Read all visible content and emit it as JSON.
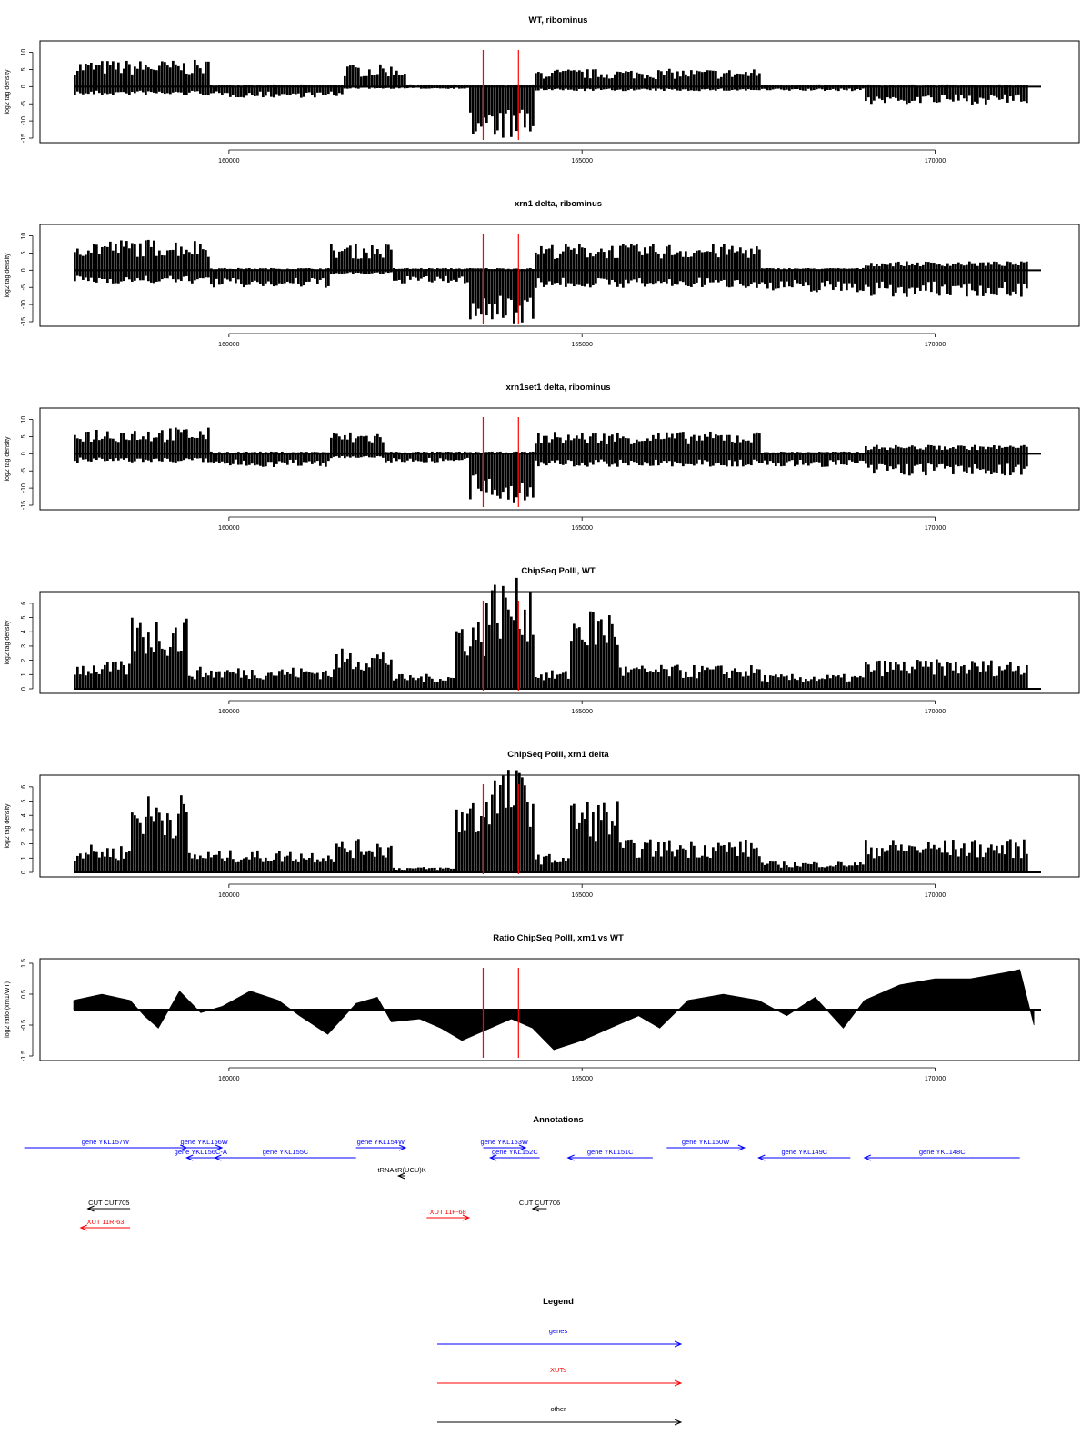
{
  "colors": {
    "genes": "#0000ff",
    "xuts": "#ff0000",
    "other": "#000000",
    "marker": "#ff0000",
    "fill": "#000000"
  },
  "chart_data": [
    {
      "type": "area",
      "title": "WT, ribominus",
      "ylabel": "log2 tag density",
      "xlim": [
        157800,
        171500
      ],
      "ylim": [
        -15,
        12
      ],
      "yticks": [
        -15,
        -10,
        -5,
        0,
        5,
        10
      ],
      "xticks": [
        160000,
        165000,
        170000
      ],
      "xtick_labels": [
        "160000",
        "165000",
        "170000"
      ],
      "markers": [
        163600,
        164100
      ],
      "segments": [
        {
          "x": [
            157800,
            159700
          ],
          "pos": 6,
          "neg": -2
        },
        {
          "x": [
            159700,
            161600
          ],
          "pos": 0.5,
          "neg": -2.5
        },
        {
          "x": [
            161600,
            162500
          ],
          "pos": 5,
          "neg": -0.5
        },
        {
          "x": [
            162500,
            163400
          ],
          "pos": 0.5,
          "neg": -0.5
        },
        {
          "x": [
            163400,
            164300
          ],
          "pos": 0.5,
          "neg": -12
        },
        {
          "x": [
            164300,
            167500
          ],
          "pos": 4,
          "neg": -1
        },
        {
          "x": [
            167500,
            169000
          ],
          "pos": 0.5,
          "neg": -1
        },
        {
          "x": [
            169000,
            171300
          ],
          "pos": 0.5,
          "neg": -4
        }
      ]
    },
    {
      "type": "area",
      "title": "xrn1 delta, ribominus",
      "ylabel": "log2 tag density",
      "xlim": [
        157800,
        171500
      ],
      "ylim": [
        -15,
        12
      ],
      "yticks": [
        -15,
        -10,
        -5,
        0,
        5,
        10
      ],
      "xticks": [
        160000,
        165000,
        170000
      ],
      "xtick_labels": [
        "160000",
        "165000",
        "170000"
      ],
      "markers": [
        163600,
        164100
      ],
      "segments": [
        {
          "x": [
            157800,
            159700
          ],
          "pos": 7,
          "neg": -3
        },
        {
          "x": [
            159700,
            161400
          ],
          "pos": 0.5,
          "neg": -4
        },
        {
          "x": [
            161400,
            162300
          ],
          "pos": 6,
          "neg": -1
        },
        {
          "x": [
            162300,
            163400
          ],
          "pos": 0.5,
          "neg": -3
        },
        {
          "x": [
            163400,
            164300
          ],
          "pos": 0.5,
          "neg": -12
        },
        {
          "x": [
            164300,
            167500
          ],
          "pos": 6,
          "neg": -4
        },
        {
          "x": [
            167500,
            169000
          ],
          "pos": 0.5,
          "neg": -5
        },
        {
          "x": [
            169000,
            171300
          ],
          "pos": 2,
          "neg": -6
        }
      ]
    },
    {
      "type": "area",
      "title": "xrn1set1 delta, ribominus",
      "ylabel": "log2 tag density",
      "xlim": [
        157800,
        171500
      ],
      "ylim": [
        -15,
        12
      ],
      "yticks": [
        -15,
        -10,
        -5,
        0,
        5,
        10
      ],
      "xticks": [
        160000,
        165000,
        170000
      ],
      "xtick_labels": [
        "160000",
        "165000",
        "170000"
      ],
      "markers": [
        163600,
        164100
      ],
      "segments": [
        {
          "x": [
            157800,
            159700
          ],
          "pos": 6,
          "neg": -2
        },
        {
          "x": [
            159700,
            161400
          ],
          "pos": 0.5,
          "neg": -3
        },
        {
          "x": [
            161400,
            162200
          ],
          "pos": 5,
          "neg": -1
        },
        {
          "x": [
            162200,
            163400
          ],
          "pos": 0.5,
          "neg": -2
        },
        {
          "x": [
            163400,
            164300
          ],
          "pos": 0.5,
          "neg": -11
        },
        {
          "x": [
            164300,
            167500
          ],
          "pos": 5,
          "neg": -3
        },
        {
          "x": [
            167500,
            169000
          ],
          "pos": 0.5,
          "neg": -3
        },
        {
          "x": [
            169000,
            171300
          ],
          "pos": 2,
          "neg": -5
        }
      ]
    },
    {
      "type": "area",
      "title": "ChipSeq PolII, WT",
      "ylabel": "log2 tag density",
      "xlim": [
        157800,
        171500
      ],
      "ylim": [
        0,
        6.5
      ],
      "yticks": [
        0,
        1,
        2,
        3,
        4,
        5,
        6
      ],
      "xticks": [
        160000,
        165000,
        170000
      ],
      "xtick_labels": [
        "160000",
        "165000",
        "170000"
      ],
      "markers": [
        163600,
        164100
      ],
      "segments": [
        {
          "x": [
            157800,
            158600
          ],
          "pos": 1.5,
          "neg": 0
        },
        {
          "x": [
            158600,
            159400
          ],
          "pos": 4,
          "neg": 0
        },
        {
          "x": [
            159400,
            161500
          ],
          "pos": 1.2,
          "neg": 0
        },
        {
          "x": [
            161500,
            162300
          ],
          "pos": 2.2,
          "neg": 0
        },
        {
          "x": [
            162300,
            163200
          ],
          "pos": 0.8,
          "neg": 0
        },
        {
          "x": [
            163200,
            163600
          ],
          "pos": 4,
          "neg": 0
        },
        {
          "x": [
            163600,
            164300
          ],
          "pos": 6,
          "neg": 0
        },
        {
          "x": [
            164300,
            164800
          ],
          "pos": 1,
          "neg": 0
        },
        {
          "x": [
            164800,
            165500
          ],
          "pos": 4.5,
          "neg": 0
        },
        {
          "x": [
            165500,
            167500
          ],
          "pos": 1.3,
          "neg": 0
        },
        {
          "x": [
            167500,
            169000
          ],
          "pos": 0.8,
          "neg": 0
        },
        {
          "x": [
            169000,
            171300
          ],
          "pos": 1.6,
          "neg": 0
        }
      ]
    },
    {
      "type": "area",
      "title": "ChipSeq PolII, xrn1 delta",
      "ylabel": "log2 tag density",
      "xlim": [
        157800,
        171500
      ],
      "ylim": [
        0,
        6.5
      ],
      "yticks": [
        0,
        1,
        2,
        3,
        4,
        5,
        6
      ],
      "xticks": [
        160000,
        165000,
        170000
      ],
      "xtick_labels": [
        "160000",
        "165000",
        "170000"
      ],
      "markers": [
        163600,
        164100
      ],
      "segments": [
        {
          "x": [
            157800,
            158600
          ],
          "pos": 1.5,
          "neg": 0
        },
        {
          "x": [
            158600,
            159400
          ],
          "pos": 4.3,
          "neg": 0
        },
        {
          "x": [
            159400,
            161500
          ],
          "pos": 1.2,
          "neg": 0
        },
        {
          "x": [
            161500,
            162300
          ],
          "pos": 1.8,
          "neg": 0
        },
        {
          "x": [
            162300,
            163200
          ],
          "pos": 0.3,
          "neg": 0
        },
        {
          "x": [
            163200,
            163600
          ],
          "pos": 4.2,
          "neg": 0
        },
        {
          "x": [
            163600,
            164300
          ],
          "pos": 5.7,
          "neg": 0
        },
        {
          "x": [
            164300,
            164800
          ],
          "pos": 1,
          "neg": 0
        },
        {
          "x": [
            164800,
            165500
          ],
          "pos": 4,
          "neg": 0
        },
        {
          "x": [
            165500,
            167500
          ],
          "pos": 1.8,
          "neg": 0
        },
        {
          "x": [
            167500,
            169000
          ],
          "pos": 0.6,
          "neg": 0
        },
        {
          "x": [
            169000,
            171300
          ],
          "pos": 1.8,
          "neg": 0
        }
      ]
    },
    {
      "type": "area",
      "title": "Ratio ChipSeq PolII, xrn1 vs WT",
      "ylabel": "log2 ratio (xrn1/WT)",
      "xlim": [
        157800,
        171500
      ],
      "ylim": [
        -1.5,
        1.5
      ],
      "yticks": [
        -1.5,
        -0.5,
        0.5,
        1.5
      ],
      "xticks": [
        160000,
        165000,
        170000
      ],
      "xtick_labels": [
        "160000",
        "165000",
        "170000"
      ],
      "markers": [
        163600,
        164100
      ],
      "profile": [
        [
          157800,
          0.3
        ],
        [
          158200,
          0.5
        ],
        [
          158600,
          0.3
        ],
        [
          158800,
          -0.2
        ],
        [
          159000,
          -0.6
        ],
        [
          159300,
          0.6
        ],
        [
          159600,
          -0.1
        ],
        [
          159900,
          0.1
        ],
        [
          160300,
          0.6
        ],
        [
          160700,
          0.3
        ],
        [
          161000,
          -0.2
        ],
        [
          161400,
          -0.8
        ],
        [
          161800,
          0.2
        ],
        [
          162100,
          0.4
        ],
        [
          162300,
          -0.4
        ],
        [
          162700,
          -0.3
        ],
        [
          163000,
          -0.6
        ],
        [
          163300,
          -1.0
        ],
        [
          163600,
          -0.7
        ],
        [
          164000,
          -0.3
        ],
        [
          164300,
          -0.6
        ],
        [
          164600,
          -1.3
        ],
        [
          165000,
          -1.0
        ],
        [
          165400,
          -0.6
        ],
        [
          165800,
          -0.2
        ],
        [
          166100,
          -0.6
        ],
        [
          166500,
          0.3
        ],
        [
          167000,
          0.5
        ],
        [
          167500,
          0.3
        ],
        [
          167900,
          -0.2
        ],
        [
          168300,
          0.4
        ],
        [
          168700,
          -0.6
        ],
        [
          169000,
          0.3
        ],
        [
          169500,
          0.8
        ],
        [
          170000,
          1.0
        ],
        [
          170500,
          1.0
        ],
        [
          171000,
          1.2
        ],
        [
          171200,
          1.3
        ],
        [
          171400,
          -0.5
        ]
      ]
    }
  ],
  "annotations": {
    "title": "Annotations",
    "items": [
      {
        "label": "gene YKL157W",
        "cat": "genes",
        "x1": 157100,
        "x2": 159400,
        "dir": "right",
        "row": 0
      },
      {
        "label": "gene YKL156W",
        "cat": "genes",
        "x1": 159400,
        "x2": 159900,
        "dir": "right",
        "row": 0
      },
      {
        "label": "gene YKL156C-A",
        "cat": "genes",
        "x1": 159400,
        "x2": 159800,
        "dir": "left",
        "row": 1
      },
      {
        "label": "gene YKL155C",
        "cat": "genes",
        "x1": 159800,
        "x2": 161800,
        "dir": "left",
        "row": 1
      },
      {
        "label": "gene YKL154W",
        "cat": "genes",
        "x1": 161800,
        "x2": 162500,
        "dir": "right",
        "row": 0
      },
      {
        "label": "gene YKL153W",
        "cat": "genes",
        "x1": 163600,
        "x2": 164200,
        "dir": "right",
        "row": 0
      },
      {
        "label": "gene YKL152C",
        "cat": "genes",
        "x1": 163700,
        "x2": 164400,
        "dir": "left",
        "row": 1
      },
      {
        "label": "gene YKL151C",
        "cat": "genes",
        "x1": 164800,
        "x2": 166000,
        "dir": "left",
        "row": 1
      },
      {
        "label": "gene YKL150W",
        "cat": "genes",
        "x1": 166200,
        "x2": 167300,
        "dir": "right",
        "row": 0
      },
      {
        "label": "gene YKL149C",
        "cat": "genes",
        "x1": 167500,
        "x2": 168800,
        "dir": "left",
        "row": 1
      },
      {
        "label": "gene YKL148C",
        "cat": "genes",
        "x1": 169000,
        "x2": 171200,
        "dir": "left",
        "row": 1
      },
      {
        "label": "tRNA tR(UCU)K",
        "cat": "other",
        "x1": 162400,
        "x2": 162500,
        "dir": "left",
        "row": 2
      },
      {
        "label": "CUT CUT705",
        "cat": "other",
        "x1": 158000,
        "x2": 158600,
        "dir": "left",
        "row": 3
      },
      {
        "label": "XUT 11R-63",
        "cat": "xuts",
        "x1": 157900,
        "x2": 158600,
        "dir": "left",
        "row": 4
      },
      {
        "label": "XUT 11F-68",
        "cat": "xuts",
        "x1": 162800,
        "x2": 163400,
        "dir": "right",
        "row": 5
      },
      {
        "label": "CUT CUT706",
        "cat": "other",
        "x1": 164300,
        "x2": 164500,
        "dir": "left",
        "row": 3
      }
    ]
  },
  "legend": {
    "title": "Legend",
    "items": [
      {
        "label": "genes",
        "cat": "genes"
      },
      {
        "label": "XUTs",
        "cat": "xuts"
      },
      {
        "label": "other",
        "cat": "other"
      }
    ]
  }
}
